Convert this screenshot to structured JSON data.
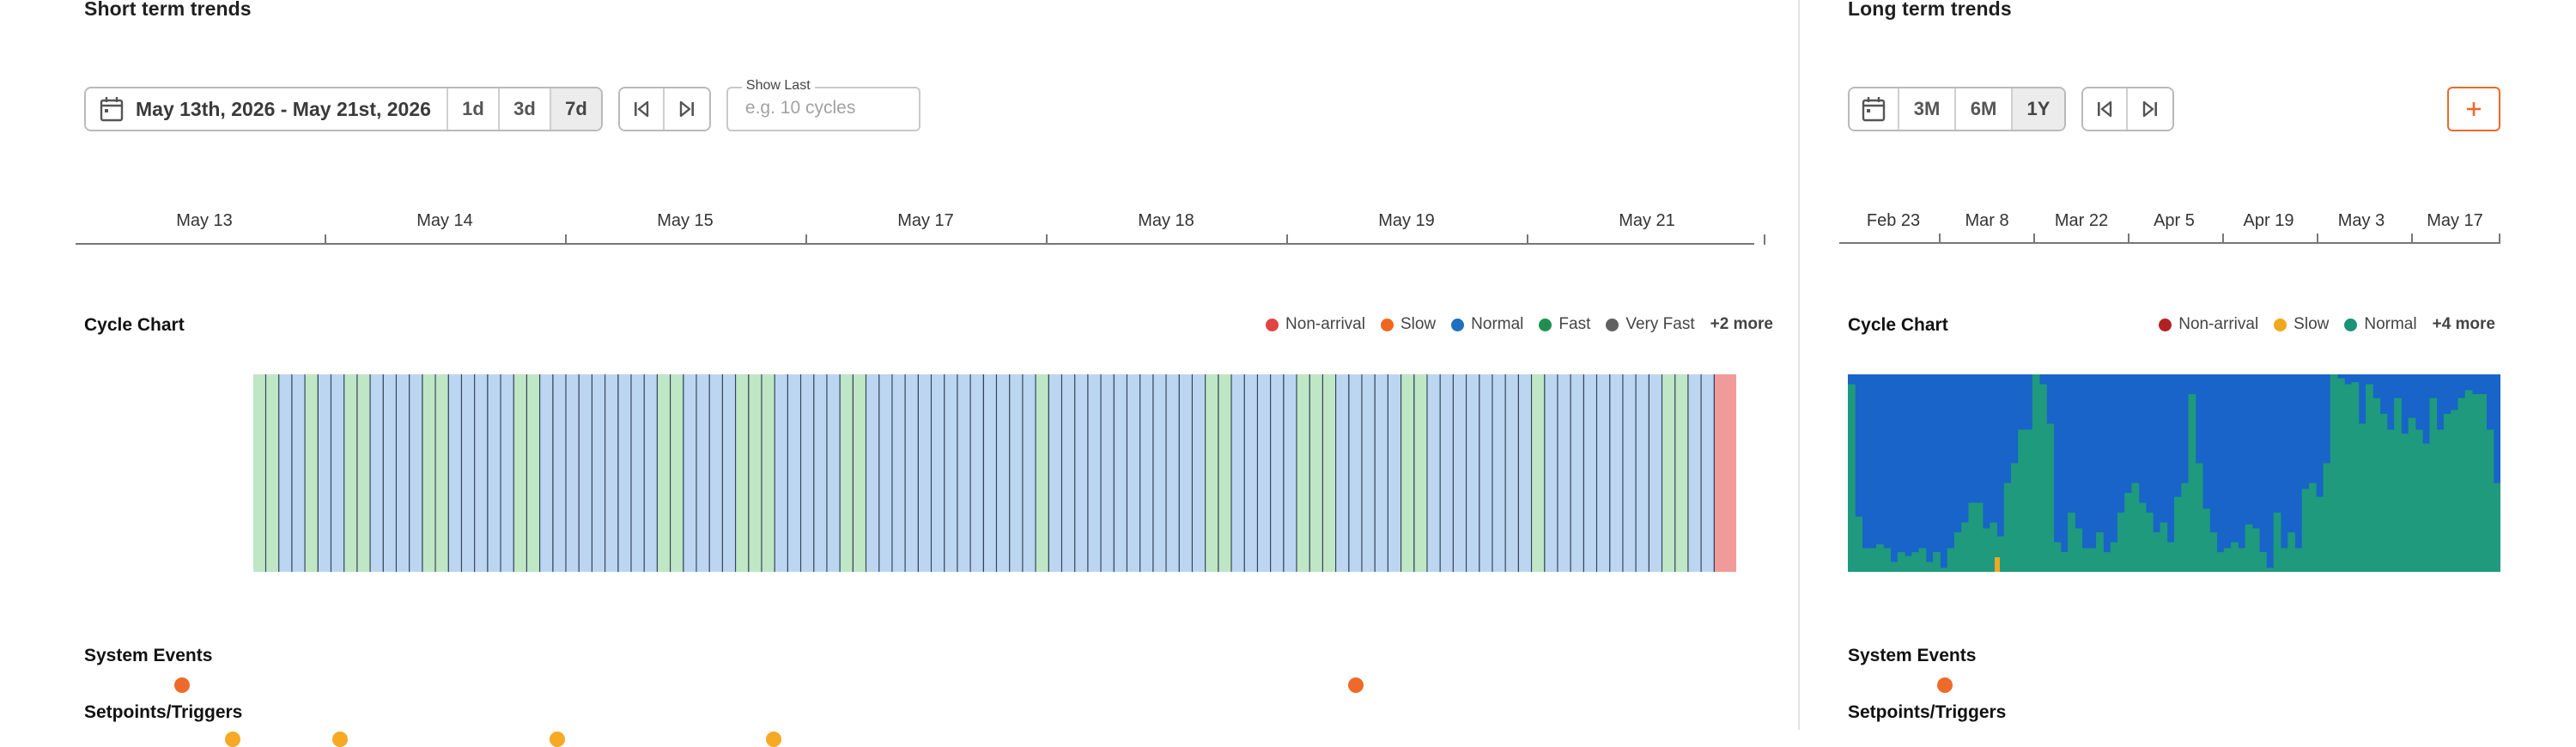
{
  "short_term": {
    "title": "Short term trends",
    "date_range": "May 13th, 2026 - May 21st, 2026",
    "ranges": [
      "1d",
      "3d",
      "7d"
    ],
    "active_range": "7d",
    "show_last": {
      "label": "Show Last",
      "placeholder": "e.g. 10 cycles",
      "value": ""
    },
    "axis_labels": [
      "May 13",
      "May 14",
      "May 15",
      "May 17",
      "May 18",
      "May 19",
      "May 21"
    ],
    "cycle_chart": {
      "title": "Cycle Chart",
      "legend": [
        {
          "name": "Non-arrival",
          "color": "#e04444"
        },
        {
          "name": "Slow",
          "color": "#f0661e"
        },
        {
          "name": "Normal",
          "color": "#1f6fbf"
        },
        {
          "name": "Fast",
          "color": "#1f8f4f"
        },
        {
          "name": "Very Fast",
          "color": "#606060"
        }
      ],
      "more": "+2 more",
      "bar_colors": {
        "normal": "#bcd6f1",
        "fast": "#bfe6c5",
        "non_arrival": "#f09a9a",
        "divider": "#33455a"
      }
    },
    "system_events": {
      "title": "System Events"
    },
    "setpoints": {
      "title": "Setpoints/Triggers"
    }
  },
  "long_term": {
    "title": "Long term trends",
    "ranges": [
      "3M",
      "6M",
      "1Y"
    ],
    "active_range": "1Y",
    "axis_labels": [
      "Feb 23",
      "Mar 8",
      "Mar 22",
      "Apr 5",
      "Apr 19",
      "May 3",
      "May 17"
    ],
    "cycle_chart": {
      "title": "Cycle Chart",
      "legend": [
        {
          "name": "Non-arrival",
          "color": "#b22222"
        },
        {
          "name": "Slow",
          "color": "#f2a81d"
        },
        {
          "name": "Normal",
          "color": "#1a9377"
        }
      ],
      "more": "+4 more",
      "colors": {
        "top": "#1864c8",
        "bottom": "#1f9a7c",
        "slow": "#f0a820"
      }
    },
    "system_events": {
      "title": "System Events"
    },
    "setpoints": {
      "title": "Setpoints/Triggers"
    }
  },
  "icons": {
    "calendar": "calendar-icon",
    "skip_start": "skip-to-start-icon",
    "skip_end": "skip-to-end-icon",
    "add": "plus-icon"
  }
}
